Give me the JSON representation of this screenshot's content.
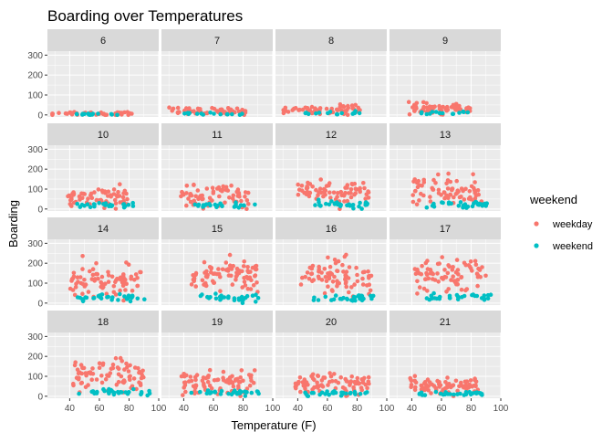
{
  "chart_data": {
    "type": "scatter",
    "title": "Boarding over Temperatures",
    "xlabel": "Temperature (F)",
    "ylabel": "Boarding",
    "xlim": [
      25,
      100
    ],
    "ylim": [
      -10,
      320
    ],
    "x_ticks": [
      40,
      60,
      80,
      100
    ],
    "y_ticks": [
      0,
      100,
      200,
      300
    ],
    "grid": true,
    "legend": {
      "title": "weekend",
      "position": "right",
      "entries": [
        {
          "name": "weekday",
          "color": "#F8766D"
        },
        {
          "name": "weekend",
          "color": "#00BFC4"
        }
      ]
    },
    "colors": {
      "weekday": "#F8766D",
      "weekend": "#00BFC4",
      "panel_bg": "#EBEBEB",
      "strip_bg": "#D9D9D9"
    },
    "facet_by": "hour",
    "facets": [
      {
        "label": "6",
        "weekday": {
          "x_range": [
            28,
            82
          ],
          "y_mean": 8,
          "y_spread": 5,
          "n": 45
        },
        "weekend": {
          "x_range": [
            40,
            80
          ],
          "y_mean": 3,
          "y_spread": 2,
          "n": 15
        }
      },
      {
        "label": "7",
        "weekday": {
          "x_range": [
            30,
            82
          ],
          "y_mean": 18,
          "y_spread": 9,
          "n": 60
        },
        "weekend": {
          "x_range": [
            40,
            82
          ],
          "y_mean": 5,
          "y_spread": 3,
          "n": 15
        }
      },
      {
        "label": "8",
        "weekday": {
          "x_range": [
            30,
            82
          ],
          "y_mean": 27,
          "y_spread": 12,
          "n": 60
        },
        "weekend": {
          "x_range": [
            40,
            82
          ],
          "y_mean": 8,
          "y_spread": 4,
          "n": 15
        }
      },
      {
        "label": "9",
        "weekday": {
          "x_range": [
            38,
            82
          ],
          "y_mean": 32,
          "y_spread": 12,
          "n": 60
        },
        "weekend": {
          "x_range": [
            45,
            80
          ],
          "y_mean": 10,
          "y_spread": 5,
          "n": 15
        }
      },
      {
        "label": "10",
        "weekday": {
          "x_range": [
            38,
            80
          ],
          "y_mean": 55,
          "y_spread": 25,
          "n": 65
        },
        "weekend": {
          "x_range": [
            45,
            85
          ],
          "y_mean": 18,
          "y_spread": 8,
          "n": 25
        }
      },
      {
        "label": "11",
        "weekday": {
          "x_range": [
            38,
            85
          ],
          "y_mean": 62,
          "y_spread": 25,
          "n": 70
        },
        "weekend": {
          "x_range": [
            45,
            88
          ],
          "y_mean": 18,
          "y_spread": 8,
          "n": 25
        }
      },
      {
        "label": "12",
        "weekday": {
          "x_range": [
            40,
            88
          ],
          "y_mean": 85,
          "y_spread": 30,
          "n": 75
        },
        "weekend": {
          "x_range": [
            50,
            88
          ],
          "y_mean": 22,
          "y_spread": 8,
          "n": 30
        }
      },
      {
        "label": "13",
        "weekday": {
          "x_range": [
            40,
            88
          ],
          "y_mean": 90,
          "y_spread": 35,
          "n": 75
        },
        "weekend": {
          "x_range": [
            50,
            95
          ],
          "y_mean": 22,
          "y_spread": 8,
          "n": 30
        }
      },
      {
        "label": "14",
        "weekday": {
          "x_range": [
            40,
            88
          ],
          "y_mean": 110,
          "y_spread": 40,
          "n": 80
        },
        "weekend": {
          "x_range": [
            45,
            92
          ],
          "y_mean": 25,
          "y_spread": 9,
          "n": 30
        }
      },
      {
        "label": "15",
        "weekday": {
          "x_range": [
            42,
            90
          ],
          "y_mean": 140,
          "y_spread": 40,
          "n": 80
        },
        "weekend": {
          "x_range": [
            50,
            92
          ],
          "y_mean": 28,
          "y_spread": 10,
          "n": 30
        }
      },
      {
        "label": "16",
        "weekday": {
          "x_range": [
            42,
            90
          ],
          "y_mean": 135,
          "y_spread": 45,
          "n": 80
        },
        "weekend": {
          "x_range": [
            50,
            92
          ],
          "y_mean": 25,
          "y_spread": 10,
          "n": 30
        }
      },
      {
        "label": "17",
        "weekday": {
          "x_range": [
            42,
            90
          ],
          "y_mean": 130,
          "y_spread": 45,
          "n": 80
        },
        "weekend": {
          "x_range": [
            50,
            95
          ],
          "y_mean": 28,
          "y_spread": 10,
          "n": 30
        }
      },
      {
        "label": "18",
        "weekday": {
          "x_range": [
            40,
            90
          ],
          "y_mean": 100,
          "y_spread": 40,
          "n": 80
        },
        "weekend": {
          "x_range": [
            45,
            95
          ],
          "y_mean": 22,
          "y_spread": 8,
          "n": 30
        }
      },
      {
        "label": "19",
        "weekday": {
          "x_range": [
            38,
            88
          ],
          "y_mean": 70,
          "y_spread": 28,
          "n": 80
        },
        "weekend": {
          "x_range": [
            45,
            92
          ],
          "y_mean": 18,
          "y_spread": 7,
          "n": 30
        }
      },
      {
        "label": "20",
        "weekday": {
          "x_range": [
            38,
            88
          ],
          "y_mean": 60,
          "y_spread": 25,
          "n": 80
        },
        "weekend": {
          "x_range": [
            45,
            92
          ],
          "y_mean": 15,
          "y_spread": 6,
          "n": 30
        }
      },
      {
        "label": "21",
        "weekday": {
          "x_range": [
            38,
            85
          ],
          "y_mean": 55,
          "y_spread": 20,
          "n": 80
        },
        "weekend": {
          "x_range": [
            45,
            90
          ],
          "y_mean": 12,
          "y_spread": 5,
          "n": 30
        }
      }
    ]
  }
}
